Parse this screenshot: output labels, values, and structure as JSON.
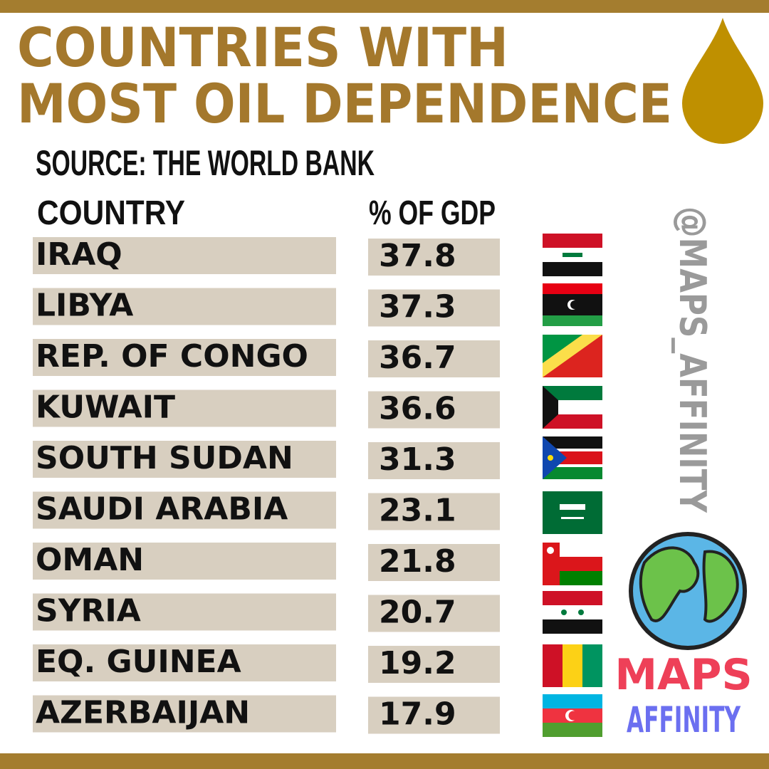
{
  "header": {
    "title_lines": [
      "COUNTRIES WITH",
      "MOST OIL DEPENDENCE"
    ],
    "source": "SOURCE: THE WORLD BANK"
  },
  "table": {
    "columns": [
      "COUNTRY",
      "% OF GDP"
    ],
    "rows": [
      [
        "IRAQ",
        "37.8"
      ],
      [
        "LIBYA",
        "37.3"
      ],
      [
        "REP. OF CONGO",
        "36.7"
      ],
      [
        "KUWAIT",
        "36.6"
      ],
      [
        "SOUTH SUDAN",
        "31.3"
      ],
      [
        "SAUDI ARABIA",
        "23.1"
      ],
      [
        "OMAN",
        "21.8"
      ],
      [
        "SYRIA",
        "20.7"
      ],
      [
        "EQ. GUINEA",
        "19.2"
      ],
      [
        "AZERBAIJAN",
        "17.9"
      ]
    ]
  },
  "watermark": "@MAPS_AFFINITY",
  "logo": {
    "line1": "MAPS",
    "line2": "AFFINITY"
  }
}
